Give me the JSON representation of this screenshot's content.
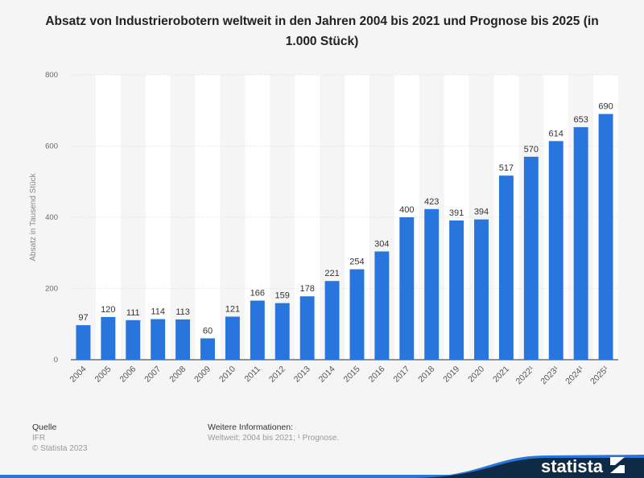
{
  "title": "Absatz von Industrierobotern weltweit in den Jahren 2004 bis 2021 und Prognose bis 2025 (in 1.000 Stück)",
  "chart_data": {
    "type": "bar",
    "title": "Absatz von Industrierobotern weltweit in den Jahren 2004 bis 2021 und Prognose bis 2025 (in 1.000 Stück)",
    "xlabel": "",
    "ylabel": "Absatz in Tausend Stück",
    "ylim": [
      0,
      800
    ],
    "yticks": [
      0,
      200,
      400,
      600,
      800
    ],
    "grid": true,
    "categories": [
      "2004",
      "2005",
      "2006",
      "2007",
      "2008",
      "2009",
      "2010",
      "2011",
      "2012",
      "2013",
      "2014",
      "2015",
      "2016",
      "2017",
      "2018",
      "2019",
      "2020",
      "2021",
      "2022¹",
      "2023¹",
      "2024¹",
      "2025¹"
    ],
    "values": [
      97,
      120,
      111,
      114,
      113,
      60,
      121,
      166,
      159,
      178,
      221,
      254,
      304,
      400,
      423,
      391,
      394,
      517,
      570,
      614,
      653,
      690
    ],
    "bar_color": "#2876dd"
  },
  "footer": {
    "source_heading": "Quelle",
    "source": "IFR",
    "copyright": "© Statista 2023",
    "info_heading": "Weitere Informationen:",
    "info": "Weltweit; 2004 bis 2021; ¹ Prognose."
  },
  "brand": {
    "logo_text": "statista",
    "dark": "#0f2a44",
    "accent": "#2876dd"
  }
}
